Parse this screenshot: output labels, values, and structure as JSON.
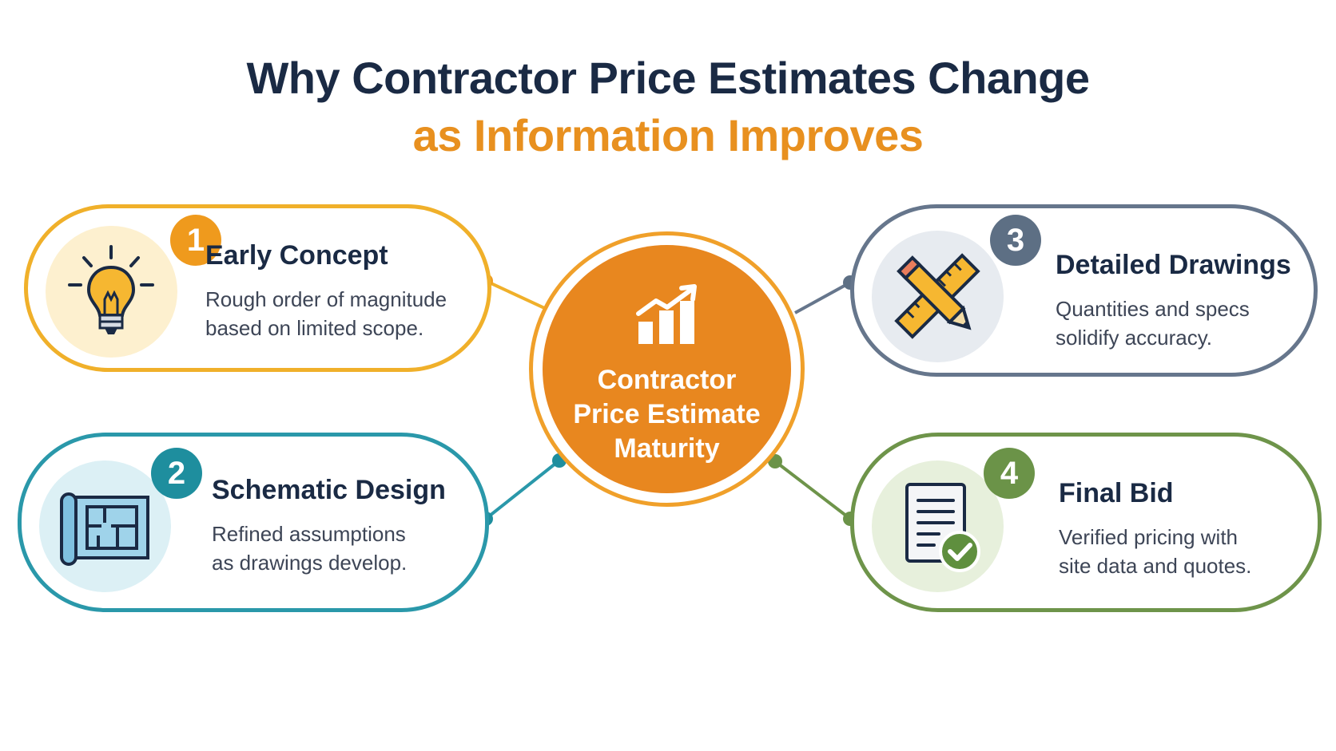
{
  "title": {
    "line1": "Why Contractor Price Estimates Change",
    "line2": "as Information Improves"
  },
  "center": {
    "line1": "Contractor",
    "line2": "Price Estimate",
    "line3": "Maturity",
    "icon": "chart-growth-icon"
  },
  "stages": [
    {
      "number": "1",
      "title": "Early Concept",
      "desc1": "Rough order of magnitude",
      "desc2": "based on limited scope.",
      "icon": "lightbulb-icon",
      "color": "#f0b02a"
    },
    {
      "number": "2",
      "title": "Schematic Design",
      "desc1": "Refined assumptions",
      "desc2": "as drawings develop.",
      "icon": "blueprint-icon",
      "color": "#2a98aa"
    },
    {
      "number": "3",
      "title": "Detailed Drawings",
      "desc1": "Quantities and specs",
      "desc2": "solidify accuracy.",
      "icon": "ruler-pencil-icon",
      "color": "#66768c"
    },
    {
      "number": "4",
      "title": "Final Bid",
      "desc1": "Verified pricing with",
      "desc2": "site data and quotes.",
      "icon": "document-check-icon",
      "color": "#6e944a"
    }
  ],
  "colors": {
    "title_dark": "#1a2a44",
    "title_accent": "#e8901f",
    "center_fill": "#e8871f"
  }
}
